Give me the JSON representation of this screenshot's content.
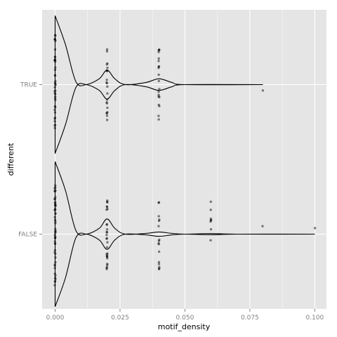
{
  "chart_data": {
    "type": "violin",
    "orientation": "horizontal",
    "xlabel": "motif_density",
    "ylabel": "different",
    "xlim": [
      -0.005,
      0.1045
    ],
    "x_ticks": [
      0,
      0.025,
      0.05,
      0.075,
      0.1
    ],
    "x_tick_labels": [
      "0.000",
      "0.025",
      "0.050",
      "0.075",
      "0.100"
    ],
    "categories": [
      "FALSE",
      "TRUE"
    ],
    "grid": true,
    "panel_background": "#e5e5e5",
    "grid_color": "#ffffff",
    "series": [
      {
        "category": "TRUE",
        "x_range": [
          0,
          0.08
        ],
        "density_profile": [
          {
            "x": 0.0,
            "w": 0.95
          },
          {
            "x": 0.004,
            "w": 0.55
          },
          {
            "x": 0.008,
            "w": 0.04
          },
          {
            "x": 0.012,
            "w": 0.0
          },
          {
            "x": 0.017,
            "w": 0.08
          },
          {
            "x": 0.02,
            "w": 0.2
          },
          {
            "x": 0.023,
            "w": 0.08
          },
          {
            "x": 0.027,
            "w": 0.0
          },
          {
            "x": 0.035,
            "w": 0.03
          },
          {
            "x": 0.04,
            "w": 0.08
          },
          {
            "x": 0.045,
            "w": 0.03
          },
          {
            "x": 0.05,
            "w": 0.0
          },
          {
            "x": 0.08,
            "w": 0.0
          }
        ],
        "points": [
          {
            "x": 0.0,
            "n": 40
          },
          {
            "x": 0.02,
            "n": 22
          },
          {
            "x": 0.04,
            "n": 20
          },
          {
            "x": 0.08,
            "n": 1
          }
        ]
      },
      {
        "category": "FALSE",
        "x_range": [
          0,
          0.1
        ],
        "density_profile": [
          {
            "x": 0.0,
            "w": 1.0
          },
          {
            "x": 0.004,
            "w": 0.6
          },
          {
            "x": 0.008,
            "w": 0.05
          },
          {
            "x": 0.012,
            "w": 0.0
          },
          {
            "x": 0.017,
            "w": 0.08
          },
          {
            "x": 0.02,
            "w": 0.21
          },
          {
            "x": 0.023,
            "w": 0.08
          },
          {
            "x": 0.027,
            "w": 0.0
          },
          {
            "x": 0.035,
            "w": 0.01
          },
          {
            "x": 0.04,
            "w": 0.03
          },
          {
            "x": 0.045,
            "w": 0.01
          },
          {
            "x": 0.05,
            "w": 0.0
          },
          {
            "x": 0.06,
            "w": 0.008
          },
          {
            "x": 0.07,
            "w": 0.0
          },
          {
            "x": 0.1,
            "w": 0.0
          }
        ],
        "points": [
          {
            "x": 0.0,
            "n": 50
          },
          {
            "x": 0.02,
            "n": 28
          },
          {
            "x": 0.04,
            "n": 16
          },
          {
            "x": 0.06,
            "n": 8
          },
          {
            "x": 0.08,
            "n": 1
          },
          {
            "x": 0.1,
            "n": 1
          }
        ]
      }
    ]
  }
}
